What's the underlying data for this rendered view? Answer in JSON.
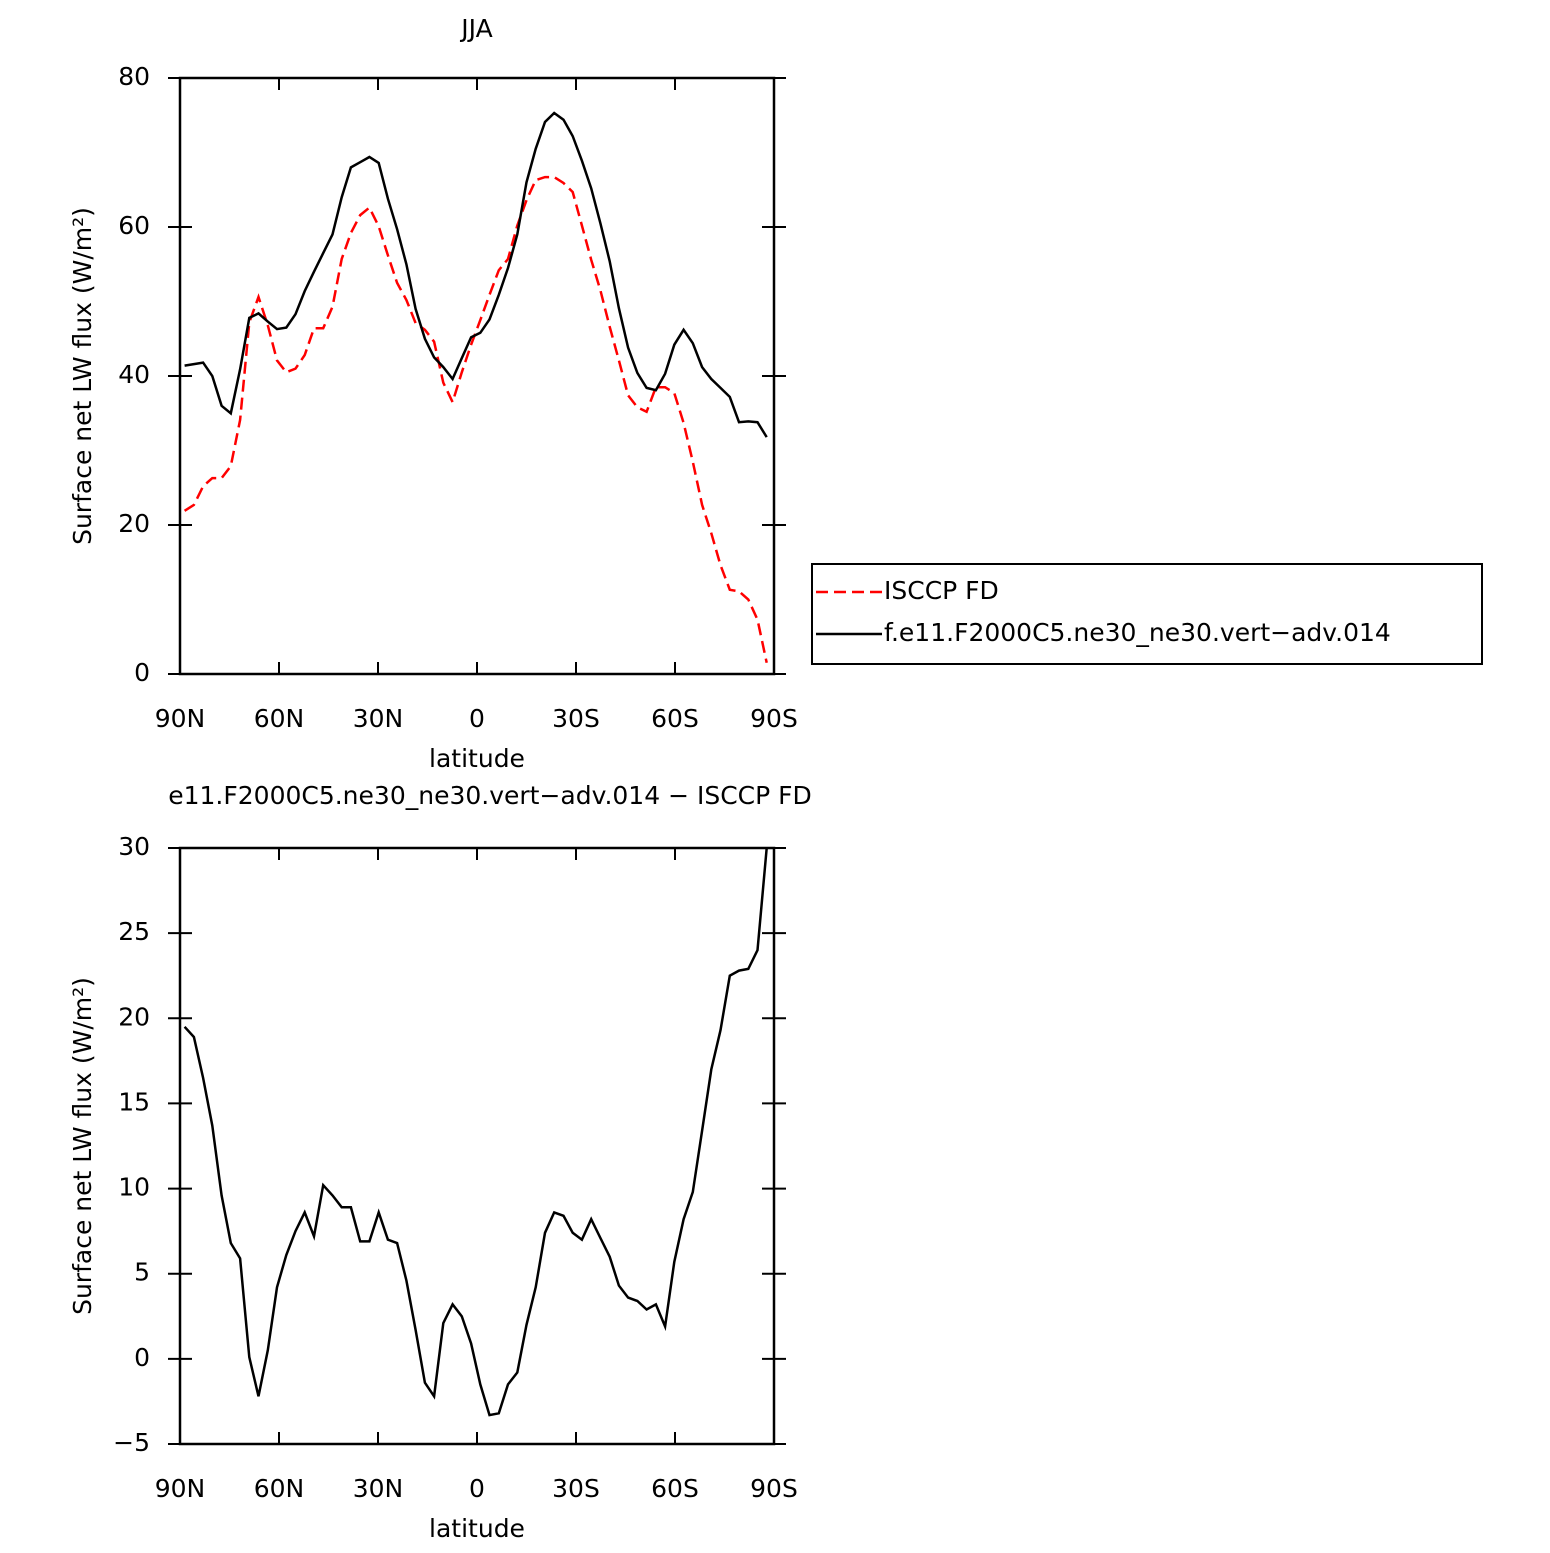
{
  "chart_data": [
    {
      "type": "line",
      "title": "JJA",
      "xlabel": "latitude",
      "ylabel": "Surface net LW flux (W/m²)",
      "x": [
        88.6,
        85.8,
        83.0,
        80.2,
        77.4,
        74.6,
        71.8,
        69.0,
        66.2,
        63.4,
        60.6,
        57.8,
        55.0,
        52.2,
        49.4,
        46.6,
        43.8,
        41.0,
        38.2,
        35.4,
        32.6,
        29.8,
        27.0,
        24.2,
        21.4,
        18.6,
        15.8,
        13.0,
        10.2,
        7.4,
        4.6,
        1.8,
        -1.0,
        -3.8,
        -6.6,
        -9.4,
        -12.2,
        -15.0,
        -17.8,
        -20.6,
        -23.4,
        -26.2,
        -29.0,
        -31.8,
        -34.6,
        -37.4,
        -40.2,
        -43.0,
        -45.8,
        -48.6,
        -51.4,
        -54.2,
        -57.0,
        -59.8,
        -62.6,
        -65.4,
        -68.2,
        -71.0,
        -73.8,
        -76.6,
        -79.4,
        -82.2,
        -85.0,
        -87.8
      ],
      "series": [
        {
          "name": "ISCCP FD",
          "color": "#ff0000",
          "style": "dashed",
          "values": [
            21.9,
            22.7,
            25.2,
            26.3,
            26.3,
            27.9,
            34.1,
            47.2,
            50.6,
            46.8,
            42.1,
            40.5,
            41.0,
            42.8,
            46.4,
            46.4,
            49.3,
            55.7,
            59.2,
            61.6,
            62.6,
            60.1,
            56.2,
            52.5,
            50.2,
            47.1,
            46.2,
            44.6,
            39.1,
            36.5,
            40.5,
            44.2,
            47.5,
            50.9,
            54.2,
            55.7,
            60.2,
            63.6,
            66.3,
            66.7,
            66.7,
            65.9,
            64.7,
            60.2,
            55.6,
            51.5,
            46.6,
            42.1,
            37.4,
            35.8,
            35.2,
            38.5,
            38.5,
            37.7,
            33.7,
            28.5,
            22.7,
            18.9,
            14.6,
            11.3,
            11.1,
            10.0,
            7.3,
            1.5
          ]
        },
        {
          "name": "f.e11.F2000C5.ne30_ne30.vert−adv.014",
          "color": "#000000",
          "style": "solid",
          "values": [
            41.4,
            41.6,
            41.8,
            40.0,
            36.0,
            35.0,
            40.9,
            47.8,
            48.4,
            47.3,
            46.3,
            46.5,
            48.3,
            51.4,
            54.0,
            56.5,
            59.0,
            64.0,
            68.0,
            68.7,
            69.4,
            68.6,
            63.8,
            59.7,
            55.0,
            49.0,
            45.0,
            42.5,
            41.2,
            39.6,
            42.4,
            45.2,
            45.8,
            47.6,
            50.9,
            54.5,
            59.0,
            66.0,
            70.5,
            74.1,
            75.3,
            74.4,
            72.2,
            68.9,
            65.2,
            60.5,
            55.4,
            49.1,
            43.8,
            40.4,
            38.4,
            38.1,
            40.3,
            44.2,
            46.2,
            44.4,
            41.2,
            39.6,
            38.4,
            37.2,
            33.8,
            33.9,
            33.8,
            31.8
          ]
        }
      ],
      "xlim": [
        90,
        -90
      ],
      "xticks": [
        {
          "value": 90,
          "label": "90N"
        },
        {
          "value": 60,
          "label": "60N"
        },
        {
          "value": 30,
          "label": "30N"
        },
        0,
        {
          "value": -30,
          "label": "30S"
        },
        {
          "value": -60,
          "label": "60S"
        },
        {
          "value": -90,
          "label": "90S"
        }
      ],
      "ylim": [
        0,
        80
      ],
      "yticks": [
        0,
        20,
        40,
        60,
        80
      ],
      "legend": "right"
    },
    {
      "type": "line",
      "title": "e11.F2000C5.ne30_ne30.vert−adv.014 − ISCCP FD",
      "xlabel": "latitude",
      "ylabel": "Surface net LW flux (W/m²)",
      "x": [
        88.6,
        85.8,
        83.0,
        80.2,
        77.4,
        74.6,
        71.8,
        69.0,
        66.2,
        63.4,
        60.6,
        57.8,
        55.0,
        52.2,
        49.4,
        46.6,
        43.8,
        41.0,
        38.2,
        35.4,
        32.6,
        29.8,
        27.0,
        24.2,
        21.4,
        18.6,
        15.8,
        13.0,
        10.2,
        7.4,
        4.6,
        1.8,
        -1.0,
        -3.8,
        -6.6,
        -9.4,
        -12.2,
        -15.0,
        -17.8,
        -20.6,
        -23.4,
        -26.2,
        -29.0,
        -31.8,
        -34.6,
        -37.4,
        -40.2,
        -43.0,
        -45.8,
        -48.6,
        -51.4,
        -54.2,
        -57.0,
        -59.8,
        -62.6,
        -65.4,
        -68.2,
        -71.0,
        -73.8,
        -76.6,
        -79.4,
        -82.2,
        -85.0,
        -87.8
      ],
      "color": "#000000",
      "values": [
        19.5,
        18.9,
        16.5,
        13.7,
        9.6,
        6.8,
        5.9,
        0.1,
        -2.2,
        0.5,
        4.2,
        6.1,
        7.5,
        8.6,
        7.2,
        10.2,
        9.6,
        8.9,
        8.9,
        6.9,
        6.9,
        8.6,
        7.0,
        6.8,
        4.6,
        1.7,
        -1.4,
        -2.2,
        2.1,
        3.2,
        2.5,
        0.9,
        -1.5,
        -3.3,
        -3.2,
        -1.5,
        -0.8,
        2.0,
        4.2,
        7.4,
        8.6,
        8.4,
        7.4,
        7.0,
        8.2,
        7.1,
        6.0,
        4.3,
        3.6,
        3.4,
        2.9,
        3.2,
        1.9,
        5.7,
        8.2,
        9.8,
        13.4,
        17.0,
        19.3,
        22.5,
        22.8,
        22.9,
        24.0,
        30.0
      ],
      "xlim": [
        90,
        -90
      ],
      "xticks": [
        {
          "value": 90,
          "label": "90N"
        },
        {
          "value": 60,
          "label": "60N"
        },
        {
          "value": 30,
          "label": "30N"
        },
        0,
        {
          "value": -30,
          "label": "30S"
        },
        {
          "value": -60,
          "label": "60S"
        },
        {
          "value": -90,
          "label": "90S"
        }
      ],
      "ylim": [
        -5,
        30
      ],
      "yticks": [
        {
          "value": -5,
          "label": "−5"
        },
        0,
        5,
        10,
        15,
        20,
        25,
        30
      ]
    }
  ]
}
